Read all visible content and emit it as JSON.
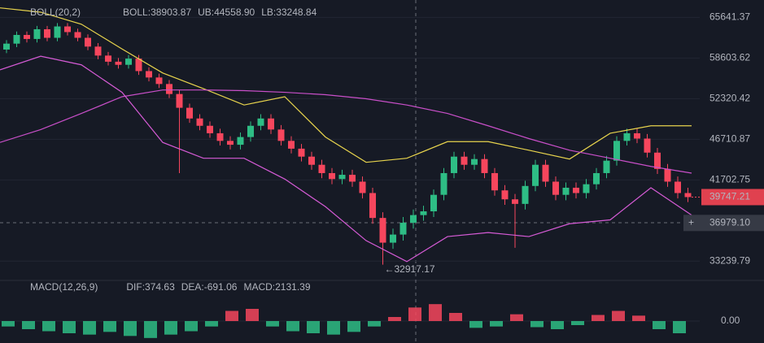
{
  "chart_data": [
    {
      "type": "candlestick",
      "log": true,
      "ylim": [
        31500,
        68900
      ],
      "yticks": [
        65641.37,
        58603.62,
        52320.42,
        46710.87,
        41702.75,
        33239.79
      ],
      "up_color": "#2ebd85",
      "down_color": "#f6465d",
      "legend": [
        {
          "text": "BOLL(20,2)",
          "color": "#b2b5be"
        },
        {
          "text": "BOLL:38903.87",
          "color": "#d1d4dc"
        },
        {
          "text": "UB:44558.90",
          "color": "#e8d44d"
        },
        {
          "text": "LB:33248.84",
          "color": "#d65bd6"
        }
      ],
      "open": [
        60000,
        61000,
        62500,
        61800,
        63500,
        62000,
        64000,
        63000,
        62000,
        60500,
        59000,
        58000,
        57500,
        58500,
        56500,
        55500,
        54500,
        53000,
        51000,
        49500,
        48500,
        47500,
        46500,
        46000,
        47000,
        48500,
        49500,
        48000,
        46500,
        45500,
        44500,
        43500,
        42500,
        41800,
        42300,
        41500,
        40200,
        37500,
        35000,
        35800,
        37000,
        37800,
        38200,
        40000,
        42500,
        44500,
        43500,
        44200,
        42500,
        40500,
        39500,
        39000,
        41000,
        43500,
        41500,
        40000,
        40800,
        40200,
        41200,
        42500,
        44000,
        46500,
        47500,
        46800,
        45000,
        43000,
        41500,
        40200
      ],
      "high": [
        61600,
        63100,
        63100,
        64100,
        64100,
        64600,
        64600,
        63600,
        62600,
        61100,
        59600,
        58600,
        59100,
        59100,
        57100,
        56100,
        55100,
        53600,
        51600,
        50100,
        49100,
        48100,
        47100,
        47600,
        49100,
        50100,
        50100,
        48600,
        47100,
        46100,
        45100,
        44100,
        43100,
        42900,
        42900,
        42100,
        40800,
        38100,
        36400,
        37600,
        38400,
        38800,
        40600,
        43100,
        45100,
        45100,
        44800,
        44800,
        43100,
        41100,
        40100,
        41600,
        44100,
        44100,
        42100,
        41400,
        41400,
        41800,
        43100,
        44600,
        47100,
        48100,
        48100,
        47400,
        45600,
        43600,
        42100,
        40800
      ],
      "low": [
        59400,
        60400,
        61200,
        61200,
        61400,
        61400,
        62400,
        61400,
        59900,
        58400,
        57400,
        56900,
        56900,
        55900,
        54900,
        53900,
        52400,
        42500,
        48900,
        47900,
        46900,
        45900,
        45400,
        45400,
        46400,
        47900,
        47400,
        45900,
        44900,
        43900,
        42900,
        41900,
        41200,
        41200,
        40900,
        39600,
        36900,
        32917.17,
        34400,
        35200,
        36400,
        37200,
        37600,
        39400,
        41900,
        42900,
        42900,
        41900,
        39900,
        38900,
        34500,
        38400,
        40400,
        40900,
        39400,
        39400,
        39600,
        39600,
        40600,
        41900,
        43400,
        45900,
        46200,
        44400,
        42400,
        40900,
        39600,
        39200
      ],
      "close": [
        61000,
        62500,
        61800,
        63500,
        62000,
        64000,
        63000,
        62000,
        60500,
        59000,
        58000,
        57500,
        58500,
        56500,
        55500,
        54500,
        53000,
        51000,
        49500,
        48500,
        47500,
        46500,
        46000,
        47000,
        48500,
        49500,
        48000,
        46500,
        45500,
        44500,
        43500,
        42500,
        41800,
        42300,
        41500,
        40200,
        37500,
        35000,
        35800,
        37000,
        37800,
        38200,
        40000,
        42500,
        44500,
        43500,
        44200,
        42500,
        40500,
        39500,
        39000,
        41000,
        43500,
        41500,
        40000,
        40800,
        40200,
        41200,
        42500,
        44000,
        46500,
        47500,
        46800,
        45000,
        43000,
        41500,
        40200,
        39747.21
      ],
      "series": [
        {
          "color": "#e8d44d",
          "values": [
            67400,
            66600,
            64400,
            60100,
            56200,
            53800,
            51400,
            52600,
            47000,
            43800,
            44300,
            46400,
            46400,
            45300,
            44200,
            47500,
            48500,
            48500
          ]
        },
        {
          "color": "#c94fc9",
          "values": [
            46300,
            47990,
            50200,
            52600,
            53600,
            53600,
            53500,
            53250,
            52900,
            52300,
            51400,
            50200,
            48500,
            46800,
            45300,
            44300,
            43300,
            42500
          ]
        },
        {
          "color": "#d65bd6",
          "values": [
            56700,
            58900,
            57500,
            53250,
            46300,
            44300,
            44300,
            41800,
            38700,
            35200,
            33200,
            35600,
            36000,
            35600,
            36900,
            37300,
            40800,
            37800
          ]
        }
      ],
      "crosshair": {
        "value": 36979.1,
        "label": "36979.10"
      }
    },
    {
      "type": "bar",
      "ylim": [
        -3000,
        3000
      ],
      "yticks": [
        {
          "value": 0,
          "label": "0.00"
        }
      ],
      "up_color": "#f6465d",
      "down_color": "#2ebd85",
      "legend": [
        {
          "text": "MACD(12,26,9)",
          "color": "#b2b5be"
        },
        {
          "text": "DIF:374.63",
          "color": "#d1d4dc"
        },
        {
          "text": "DEA:-691.06",
          "color": "#e8d44d"
        },
        {
          "text": "MACD:2131.39",
          "color": "#f6465d"
        }
      ],
      "values": [
        -800,
        -1200,
        -1500,
        -1800,
        -2000,
        -1600,
        -2200,
        -2500,
        -2000,
        -1500,
        -800,
        1500,
        1800,
        -800,
        -1500,
        -1800,
        -2000,
        -1600,
        -800,
        600,
        2000,
        2500,
        1200,
        -1000,
        -800,
        1000,
        -900,
        -1200,
        -600,
        900,
        1500,
        800,
        -1200,
        -1800
      ]
    }
  ]
}
